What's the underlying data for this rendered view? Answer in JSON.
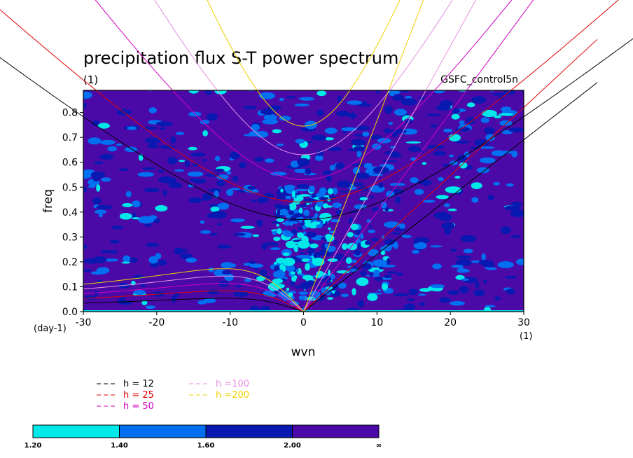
{
  "chart_data": {
    "type": "heatmap",
    "title": "precipitation flux S-T power spectrum",
    "subtitle": "(1)",
    "run_label": "GSFC_control5n",
    "xlabel": "wvn",
    "ylabel": "freq",
    "x_unit_label": "(1)",
    "y_unit_label": "(day-1)",
    "xlim": [
      -30,
      30
    ],
    "ylim": [
      0,
      0.9
    ],
    "x_ticks": [
      "-30",
      "-20",
      "-10",
      "0",
      "10",
      "20",
      "30"
    ],
    "y_ticks": [
      "0.0",
      "0.1",
      "0.2",
      "0.3",
      "0.4",
      "0.5",
      "0.6",
      "0.7",
      "0.8"
    ],
    "background_fill": "#4b0aa8",
    "dispersion_curves": [
      {
        "label": "h = 12",
        "h": 12,
        "color": "#000000"
      },
      {
        "label": "h = 25",
        "h": 25,
        "color": "#e00000"
      },
      {
        "label": "h = 50",
        "h": 50,
        "color": "#d000c0"
      },
      {
        "label": "h =100",
        "h": 100,
        "color": "#e890e0"
      },
      {
        "label": "h =200",
        "h": 200,
        "color": "#f0d000"
      }
    ],
    "kelvin_endpoint_freq_at_wvn30": [
      0.69,
      0.82,
      1.2,
      1.6,
      2.3
    ],
    "inertia_gravity_freq_at_wvn0": [
      0.37,
      0.44,
      0.53,
      0.63,
      0.745
    ],
    "contour_levels": [
      "1.20",
      "1.40",
      "1.60",
      "2.00",
      "∞"
    ],
    "contour_colors": [
      "#00e8e8",
      "#0070f0",
      "#0818b0",
      "#4b0aa8"
    ],
    "hotspots": [
      {
        "x": 0,
        "y": 0.27,
        "level": 1.2
      },
      {
        "x": -2,
        "y": 0.2,
        "level": 1.2
      },
      {
        "x": 2,
        "y": 0.2,
        "level": 1.2
      },
      {
        "x": 3,
        "y": 0.38,
        "level": 1.2
      },
      {
        "x": 8,
        "y": 0.12,
        "level": 1.2
      },
      {
        "x": -4,
        "y": 0.1,
        "level": 1.2
      },
      {
        "x": 0,
        "y": 0.6,
        "level": 1.6
      },
      {
        "x": 1,
        "y": 0.75,
        "level": 1.4
      }
    ]
  }
}
